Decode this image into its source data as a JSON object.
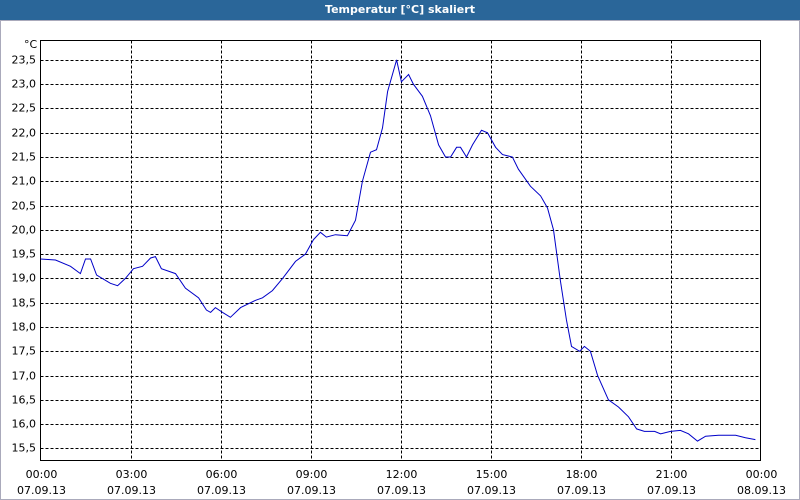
{
  "chart_data": {
    "type": "line",
    "title": "Temperatur [°C] skaliert",
    "y_unit": "°C",
    "x": [
      0,
      0.5,
      1.0,
      1.33,
      1.5,
      1.67,
      1.87,
      2.33,
      2.57,
      2.83,
      3.1,
      3.4,
      3.67,
      3.83,
      4.03,
      4.5,
      4.83,
      5.27,
      5.53,
      5.67,
      5.83,
      6.07,
      6.33,
      6.67,
      7.17,
      7.4,
      7.73,
      8.07,
      8.5,
      8.83,
      9.1,
      9.33,
      9.53,
      9.83,
      10.23,
      10.5,
      10.73,
      11.0,
      11.2,
      11.4,
      11.57,
      11.87,
      12.03,
      12.27,
      12.43,
      12.73,
      13.0,
      13.27,
      13.5,
      13.67,
      13.87,
      14.0,
      14.2,
      14.4,
      14.7,
      14.9,
      15.17,
      15.4,
      15.73,
      15.93,
      16.33,
      16.67,
      16.9,
      17.1,
      17.33,
      17.53,
      17.7,
      17.97,
      18.13,
      18.33,
      18.57,
      18.93,
      19.27,
      19.6,
      19.87,
      20.13,
      20.47,
      20.67,
      21.0,
      21.33,
      21.6,
      21.9,
      22.17,
      22.6,
      23.17,
      23.5,
      23.83
    ],
    "series": [
      {
        "color": "#0000c8",
        "values": [
          19.4,
          19.38,
          19.25,
          19.1,
          19.4,
          19.4,
          19.07,
          18.9,
          18.85,
          19.0,
          19.2,
          19.25,
          19.42,
          19.45,
          19.2,
          19.1,
          18.8,
          18.6,
          18.35,
          18.3,
          18.4,
          18.3,
          18.2,
          18.4,
          18.55,
          18.6,
          18.75,
          19.0,
          19.35,
          19.5,
          19.8,
          19.95,
          19.85,
          19.9,
          19.88,
          20.2,
          21.0,
          21.6,
          21.65,
          22.1,
          22.85,
          23.5,
          23.05,
          23.2,
          23.0,
          22.75,
          22.35,
          21.75,
          21.5,
          21.5,
          21.7,
          21.7,
          21.5,
          21.75,
          22.05,
          22.0,
          21.7,
          21.55,
          21.5,
          21.25,
          20.9,
          20.7,
          20.45,
          20.0,
          18.95,
          18.15,
          17.6,
          17.5,
          17.6,
          17.5,
          17.0,
          16.5,
          16.35,
          16.15,
          15.9,
          15.85,
          15.85,
          15.8,
          15.85,
          15.87,
          15.8,
          15.65,
          15.75,
          15.77,
          15.77,
          15.72,
          15.68
        ]
      }
    ],
    "xlim": [
      0,
      24
    ],
    "ylim": [
      15.25,
      23.9
    ],
    "xticks": [
      {
        "value": 0,
        "label": "00:00"
      },
      {
        "value": 3,
        "label": "03:00"
      },
      {
        "value": 6,
        "label": "06:00"
      },
      {
        "value": 9,
        "label": "09:00"
      },
      {
        "value": 12,
        "label": "12:00"
      },
      {
        "value": 15,
        "label": "15:00"
      },
      {
        "value": 18,
        "label": "18:00"
      },
      {
        "value": 21,
        "label": "21:00"
      },
      {
        "value": 24,
        "label": "00:00"
      }
    ],
    "xtick_dates": [
      "07.09.13",
      "07.09.13",
      "07.09.13",
      "07.09.13",
      "07.09.13",
      "07.09.13",
      "07.09.13",
      "07.09.13",
      "08.09.13"
    ],
    "yticks": [
      {
        "value": 15.5,
        "label": "15,5"
      },
      {
        "value": 16,
        "label": "16,0"
      },
      {
        "value": 16.5,
        "label": "16,5"
      },
      {
        "value": 17,
        "label": "17,0"
      },
      {
        "value": 17.5,
        "label": "17,5"
      },
      {
        "value": 18,
        "label": "18,0"
      },
      {
        "value": 18.5,
        "label": "18,5"
      },
      {
        "value": 19,
        "label": "19,0"
      },
      {
        "value": 19.5,
        "label": "19,5"
      },
      {
        "value": 20,
        "label": "20,0"
      },
      {
        "value": 20.5,
        "label": "20,5"
      },
      {
        "value": 21,
        "label": "21,0"
      },
      {
        "value": 21.5,
        "label": "21,5"
      },
      {
        "value": 22,
        "label": "22,0"
      },
      {
        "value": 22.5,
        "label": "22,5"
      },
      {
        "value": 23,
        "label": "23,0"
      },
      {
        "value": 23.5,
        "label": "23,5"
      }
    ],
    "grid": true
  }
}
